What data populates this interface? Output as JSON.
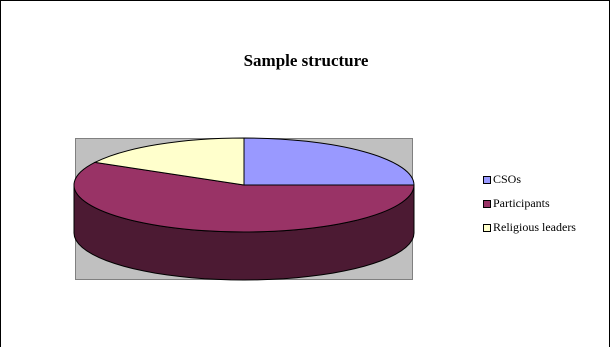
{
  "chart_data": {
    "type": "pie",
    "title": "Sample structure",
    "categories": [
      "CSOs",
      "Participants",
      "Religious leaders"
    ],
    "values": [
      25,
      58,
      17
    ],
    "colors": [
      "#9999ff",
      "#993366",
      "#ffffcc"
    ],
    "side_colors": [
      "#4c4c80",
      "#4c1a33",
      "#808066"
    ],
    "legend_position": "right",
    "plot_background": "#c0c0c0",
    "style": "3d"
  }
}
